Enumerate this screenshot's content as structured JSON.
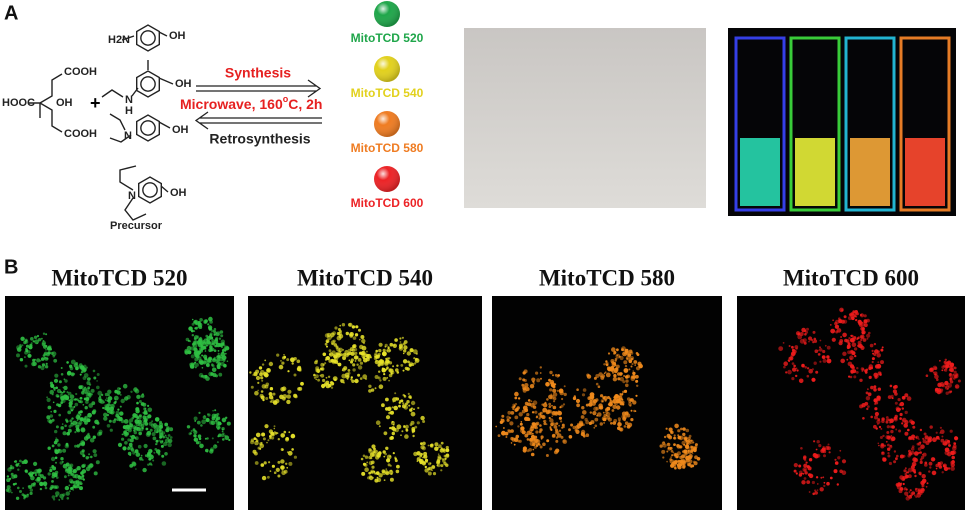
{
  "panel_a": {
    "label": "A",
    "citric_acid": {
      "cooh_top": "COOH",
      "hooc": "HOOC",
      "oh": "OH",
      "cooh_bottom": "COOH"
    },
    "plus": "+",
    "aminophenols": [
      {
        "amine": "H2N",
        "oh": "OH"
      },
      {
        "amine_n": "N",
        "amine_h": "H",
        "oh": "OH"
      },
      {
        "amine": "N",
        "oh": "OH"
      },
      {
        "amine": "N",
        "oh": "OH"
      }
    ],
    "precursor": "Precursor",
    "synthesis": "Synthesis",
    "conditions": {
      "before": "Microwave, 160",
      "sup": "o",
      "after": "C, 2h"
    },
    "retrosynthesis": "Retrosynthesis",
    "products": [
      {
        "name": "MitoTCD 520",
        "color": "#1fa64a"
      },
      {
        "name": "MitoTCD 540",
        "color": "#e2d11d"
      },
      {
        "name": "MitoTCD 580",
        "color": "#ef7c22"
      },
      {
        "name": "MitoTCD 600",
        "color": "#ec2326"
      }
    ]
  },
  "panel_b": {
    "label": "B",
    "images": [
      {
        "title": "MitoTCD 520",
        "color": "#2fc043"
      },
      {
        "title": "MitoTCD 540",
        "color": "#e6e12a"
      },
      {
        "title": "MitoTCD 580",
        "color": "#f08a1c"
      },
      {
        "title": "MitoTCD 600",
        "color": "#f01c1c"
      }
    ]
  }
}
